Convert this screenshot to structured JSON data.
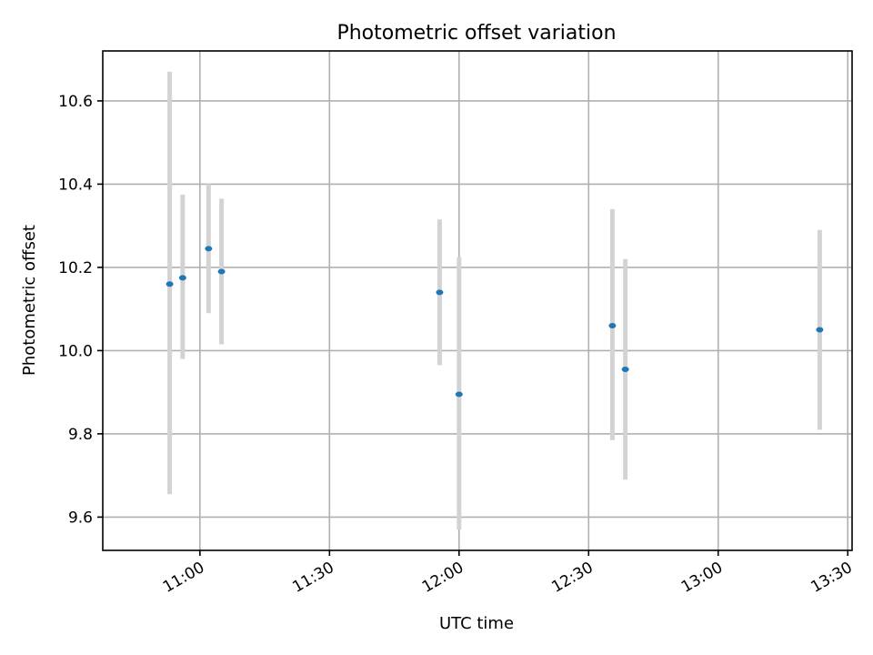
{
  "chart_data": {
    "type": "scatter",
    "title": "Photometric offset variation",
    "xlabel": "UTC time",
    "ylabel": "Photometric offset",
    "x_tick_labels": [
      "11:00",
      "11:30",
      "12:00",
      "12:30",
      "13:00",
      "13:30"
    ],
    "x_tick_values": [
      "11:00",
      "11:30",
      "12:00",
      "12:30",
      "13:00",
      "13:30"
    ],
    "y_ticks": [
      "9.6",
      "9.8",
      "10.0",
      "10.2",
      "10.4",
      "10.6"
    ],
    "xlim": [
      "10:37:30",
      "13:31:00"
    ],
    "ylim": [
      9.52,
      10.72
    ],
    "grid": true,
    "colors": {
      "point": "#1f77b4",
      "errorbar": "#d3d3d3"
    },
    "points": [
      {
        "x": "10:53:00",
        "y": 10.16,
        "err_low": 9.655,
        "err_high": 10.67
      },
      {
        "x": "10:56:00",
        "y": 10.175,
        "err_low": 9.98,
        "err_high": 10.375
      },
      {
        "x": "11:02:00",
        "y": 10.245,
        "err_low": 10.09,
        "err_high": 10.4
      },
      {
        "x": "11:05:00",
        "y": 10.19,
        "err_low": 10.015,
        "err_high": 10.365
      },
      {
        "x": "11:55:30",
        "y": 10.14,
        "err_low": 9.965,
        "err_high": 10.315
      },
      {
        "x": "12:00:00",
        "y": 9.895,
        "err_low": 9.57,
        "err_high": 10.225
      },
      {
        "x": "12:35:30",
        "y": 10.06,
        "err_low": 9.785,
        "err_high": 10.34
      },
      {
        "x": "12:38:30",
        "y": 9.955,
        "err_low": 9.69,
        "err_high": 10.22
      },
      {
        "x": "13:23:30",
        "y": 10.05,
        "err_low": 9.81,
        "err_high": 10.29
      }
    ]
  }
}
